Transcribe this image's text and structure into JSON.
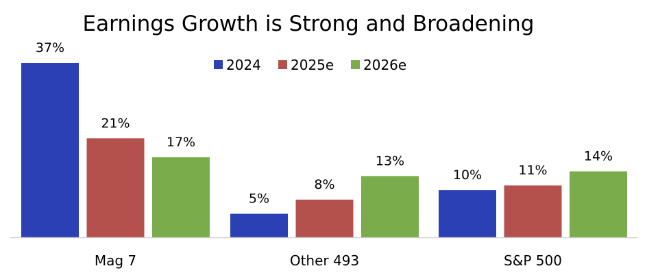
{
  "chart_data": {
    "type": "bar",
    "title": "Earnings Growth is Strong and Broadening",
    "xlabel": "",
    "ylabel": "",
    "categories": [
      "Mag 7",
      "Other 493",
      "S&P 500"
    ],
    "series": [
      {
        "name": "2024",
        "color": "#2b40b4",
        "values": [
          37,
          5,
          10
        ]
      },
      {
        "name": "2025e",
        "color": "#b5514d",
        "values": [
          21,
          8,
          11
        ]
      },
      {
        "name": "2026e",
        "color": "#7bac4b",
        "values": [
          17,
          13,
          14
        ]
      }
    ],
    "value_suffix": "%",
    "ylim": [
      0,
      37
    ],
    "grid": false,
    "legend_position": "top-center",
    "data_labels": true
  }
}
